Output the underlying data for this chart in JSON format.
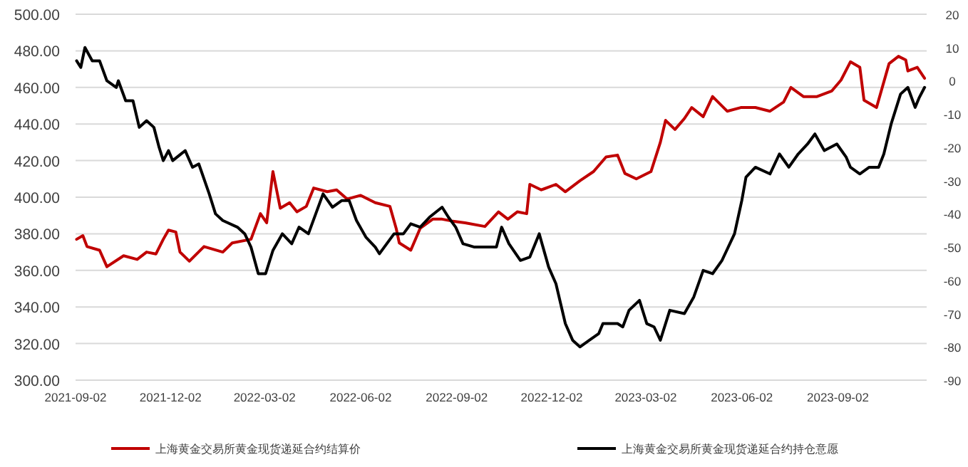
{
  "chart_data": {
    "type": "line",
    "grid": "y",
    "legend": "bottom",
    "xlim": [
      "2021-09-02",
      "2023-11-26"
    ],
    "xticks": [
      "2021-09-02",
      "2021-12-02",
      "2022-03-02",
      "2022-06-02",
      "2022-09-02",
      "2022-12-02",
      "2023-03-02",
      "2023-06-02",
      "2023-09-02"
    ],
    "ylim": [
      300,
      500
    ],
    "yticks": [
      {
        "value": 300,
        "label": "300.00"
      },
      {
        "value": 320,
        "label": "320.00"
      },
      {
        "value": 340,
        "label": "340.00"
      },
      {
        "value": 360,
        "label": "360.00"
      },
      {
        "value": 380,
        "label": "380.00"
      },
      {
        "value": 400,
        "label": "400.00"
      },
      {
        "value": 420,
        "label": "420.00"
      },
      {
        "value": 440,
        "label": "440.00"
      },
      {
        "value": 460,
        "label": "460.00"
      },
      {
        "value": 480,
        "label": "480.00"
      },
      {
        "value": 500,
        "label": "500.00"
      }
    ],
    "y2lim": [
      -90,
      20
    ],
    "y2ticks": [
      -90,
      -80,
      -70,
      -60,
      -50,
      -40,
      -30,
      -20,
      -10,
      0,
      10,
      20
    ],
    "series": [
      {
        "name": "上海黄金交易所黄金现货递延合约结算价",
        "color": "#c00000",
        "axis": "y",
        "x": [
          "2021-09-03",
          "2021-09-09",
          "2021-09-13",
          "2021-09-25",
          "2021-10-02",
          "2021-10-18",
          "2021-10-31",
          "2021-11-09",
          "2021-11-18",
          "2021-11-25",
          "2021-11-30",
          "2021-12-07",
          "2021-12-11",
          "2021-12-20",
          "2022-01-03",
          "2022-01-21",
          "2022-01-30",
          "2022-02-17",
          "2022-02-26",
          "2022-03-04",
          "2022-03-10",
          "2022-03-17",
          "2022-03-26",
          "2022-04-02",
          "2022-04-11",
          "2022-04-18",
          "2022-05-01",
          "2022-05-10",
          "2022-05-20",
          "2022-06-02",
          "2022-06-16",
          "2022-06-30",
          "2022-07-06",
          "2022-07-09",
          "2022-07-20",
          "2022-07-29",
          "2022-08-10",
          "2022-08-19",
          "2022-08-28",
          "2022-09-10",
          "2022-09-29",
          "2022-10-12",
          "2022-10-21",
          "2022-10-30",
          "2022-11-08",
          "2022-11-11",
          "2022-11-22",
          "2022-12-06",
          "2022-12-15",
          "2022-12-29",
          "2023-01-11",
          "2023-01-23",
          "2023-02-03",
          "2023-02-10",
          "2023-02-21",
          "2023-03-07",
          "2023-03-16",
          "2023-03-21",
          "2023-03-30",
          "2023-04-08",
          "2023-04-15",
          "2023-04-26",
          "2023-05-05",
          "2023-05-19",
          "2023-06-01",
          "2023-06-15",
          "2023-06-29",
          "2023-07-12",
          "2023-07-19",
          "2023-07-31",
          "2023-08-13",
          "2023-08-27",
          "2023-09-05",
          "2023-09-14",
          "2023-09-23",
          "2023-09-27",
          "2023-10-09",
          "2023-10-21",
          "2023-10-30",
          "2023-11-06",
          "2023-11-08",
          "2023-11-17",
          "2023-11-24"
        ],
        "values": [
          377,
          379,
          373,
          371,
          362,
          368,
          366,
          370,
          369,
          377,
          382,
          381,
          370,
          365,
          373,
          370,
          375,
          377,
          391,
          386,
          414,
          394,
          397,
          392,
          395,
          405,
          403,
          404,
          399,
          401,
          397,
          395,
          383,
          375,
          371,
          383,
          388,
          388,
          387,
          386,
          384,
          392,
          388,
          392,
          391,
          407,
          404,
          407,
          403,
          409,
          414,
          422,
          423,
          413,
          410,
          414,
          430,
          442,
          437,
          443,
          449,
          444,
          455,
          447,
          449,
          449,
          447,
          452,
          460,
          455,
          455,
          458,
          464,
          474,
          471,
          453,
          449,
          473,
          477,
          475,
          469,
          471,
          465
        ]
      },
      {
        "name": "上海黄金交易所黄金现货递延合约持仓意愿",
        "color": "#000000",
        "axis": "y2",
        "x": [
          "2021-09-03",
          "2021-09-07",
          "2021-09-11",
          "2021-09-18",
          "2021-09-25",
          "2021-10-02",
          "2021-10-11",
          "2021-10-13",
          "2021-10-20",
          "2021-10-27",
          "2021-11-02",
          "2021-11-09",
          "2021-11-16",
          "2021-11-21",
          "2021-11-25",
          "2021-11-30",
          "2021-12-04",
          "2021-12-16",
          "2021-12-23",
          "2021-12-29",
          "2022-01-08",
          "2022-01-14",
          "2022-01-21",
          "2022-02-04",
          "2022-02-11",
          "2022-02-17",
          "2022-02-24",
          "2022-03-03",
          "2022-03-10",
          "2022-03-19",
          "2022-03-28",
          "2022-04-04",
          "2022-04-13",
          "2022-04-20",
          "2022-04-27",
          "2022-05-06",
          "2022-05-15",
          "2022-05-22",
          "2022-05-29",
          "2022-06-07",
          "2022-06-16",
          "2022-06-20",
          "2022-06-27",
          "2022-07-04",
          "2022-07-13",
          "2022-07-20",
          "2022-07-29",
          "2022-08-07",
          "2022-08-19",
          "2022-08-25",
          "2022-09-01",
          "2022-09-08",
          "2022-09-19",
          "2022-09-29",
          "2022-10-10",
          "2022-10-15",
          "2022-10-22",
          "2022-11-02",
          "2022-11-11",
          "2022-11-20",
          "2022-11-29",
          "2022-12-06",
          "2022-12-15",
          "2022-12-22",
          "2022-12-29",
          "2023-01-07",
          "2023-01-16",
          "2023-01-20",
          "2023-02-03",
          "2023-02-08",
          "2023-02-14",
          "2023-02-24",
          "2023-03-03",
          "2023-03-10",
          "2023-03-16",
          "2023-03-25",
          "2023-04-08",
          "2023-04-17",
          "2023-04-26",
          "2023-05-05",
          "2023-05-14",
          "2023-05-26",
          "2023-06-02",
          "2023-06-06",
          "2023-06-15",
          "2023-06-29",
          "2023-07-08",
          "2023-07-17",
          "2023-07-26",
          "2023-08-04",
          "2023-08-11",
          "2023-08-20",
          "2023-09-01",
          "2023-09-10",
          "2023-09-14",
          "2023-09-23",
          "2023-10-02",
          "2023-10-11",
          "2023-10-16",
          "2023-10-23",
          "2023-11-01",
          "2023-11-08",
          "2023-11-15",
          "2023-11-19",
          "2023-11-24"
        ],
        "values": [
          6,
          4,
          10,
          6,
          6,
          0,
          -2,
          0,
          -6,
          -6,
          -14,
          -12,
          -14,
          -20,
          -24,
          -21,
          -24,
          -21,
          -26,
          -25,
          -34,
          -40,
          -42,
          -44,
          -46,
          -50,
          -58,
          -58,
          -51,
          -46,
          -49,
          -44,
          -46,
          -40,
          -34,
          -38,
          -36,
          -36,
          -42,
          -47,
          -50,
          -52,
          -49,
          -46,
          -46,
          -43,
          -44,
          -41,
          -38,
          -41,
          -44,
          -49,
          -50,
          -50,
          -50,
          -44,
          -49,
          -54,
          -53,
          -46,
          -56,
          -61,
          -73,
          -78,
          -80,
          -78,
          -76,
          -73,
          -73,
          -74,
          -69,
          -66,
          -73,
          -74,
          -78,
          -69,
          -70,
          -65,
          -57,
          -58,
          -54,
          -46,
          -36,
          -29,
          -26,
          -28,
          -22,
          -26,
          -22,
          -19,
          -16,
          -21,
          -19,
          -23,
          -26,
          -28,
          -26,
          -26,
          -22,
          -13,
          -4,
          -2,
          -8,
          -5,
          -2
        ]
      }
    ]
  }
}
